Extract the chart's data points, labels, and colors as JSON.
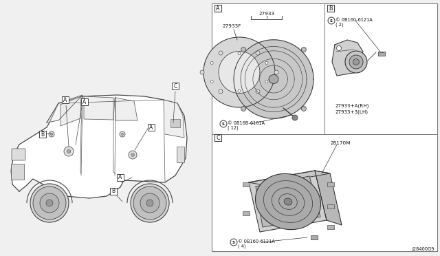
{
  "background_color": "#f0f0f0",
  "panel_bg": "#ffffff",
  "border_color": "#555555",
  "text_color": "#111111",
  "fig_width": 6.4,
  "fig_height": 3.72,
  "dpi": 100,
  "diagram_ref": "J28400G9",
  "part_27933": "27933",
  "part_27933F": "27933F",
  "part_28170M": "28170M",
  "screw_6161A_line1": "© 0B16B-6161A",
  "screw_6161A_line2": "( 12)",
  "screw_6121A_B_line1": "© 0B160-6121A",
  "screw_6121A_B_line2": "( 2)",
  "screw_6121A_C_line1": "© 0B160-6121A",
  "screw_6121A_C_line2": "( 4)",
  "label_27933_rh": "27933+A(RH)",
  "label_27933_lh": "27933+3(LH)",
  "line_color": "#333333",
  "line_color2": "#555555",
  "lw": 0.7
}
